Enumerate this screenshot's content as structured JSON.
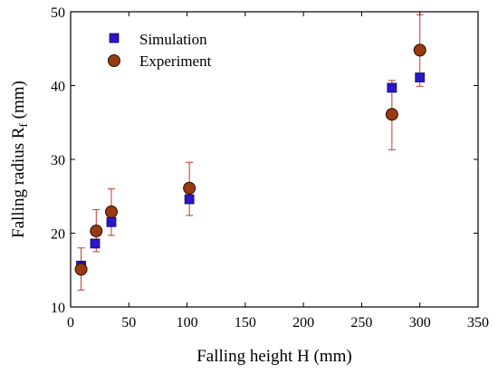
{
  "chart_data": {
    "type": "scatter",
    "xlabel": "Falling height H (mm)",
    "ylabel": "Falling radius R",
    "ylabel_subscript": "f",
    "ylabel_unit": " (mm)",
    "xlim": [
      0,
      350
    ],
    "ylim": [
      10,
      50
    ],
    "xticks": [
      0,
      50,
      100,
      150,
      200,
      250,
      300,
      350
    ],
    "yticks": [
      10,
      20,
      30,
      40,
      50
    ],
    "grid": false,
    "legend_position": "top-left",
    "series": [
      {
        "name": "Simulation",
        "marker": "square",
        "color": "#2b16c9",
        "points": [
          {
            "x": 9,
            "y": 15.6
          },
          {
            "x": 21,
            "y": 18.6
          },
          {
            "x": 35,
            "y": 21.5
          },
          {
            "x": 102,
            "y": 24.6
          },
          {
            "x": 276,
            "y": 39.7
          },
          {
            "x": 300,
            "y": 41.1
          }
        ]
      },
      {
        "name": "Experiment",
        "marker": "circle",
        "color": "#9a3a10",
        "error_color": "#c0392b",
        "points": [
          {
            "x": 9,
            "y": 15.1,
            "err_low": 12.3,
            "err_high": 18.0
          },
          {
            "x": 22,
            "y": 20.3,
            "err_low": 17.5,
            "err_high": 23.2
          },
          {
            "x": 35,
            "y": 22.9,
            "err_low": 19.7,
            "err_high": 26.0
          },
          {
            "x": 102,
            "y": 26.1,
            "err_low": 22.4,
            "err_high": 29.6
          },
          {
            "x": 276,
            "y": 36.1,
            "err_low": 31.3,
            "err_high": 40.7
          },
          {
            "x": 300,
            "y": 44.8,
            "err_low": 39.9,
            "err_high": 49.6
          }
        ]
      }
    ]
  }
}
